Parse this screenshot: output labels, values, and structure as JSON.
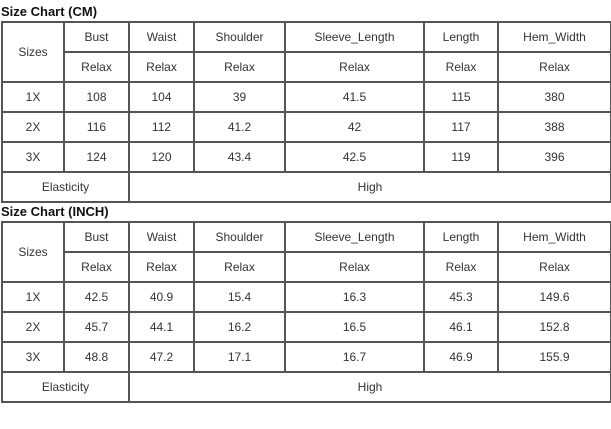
{
  "tables": [
    {
      "title": "Size Chart (CM)",
      "sizes_label": "Sizes",
      "headers": [
        "Bust",
        "Waist",
        "Shoulder",
        "Sleeve_Length",
        "Length",
        "Hem_Width"
      ],
      "subheaders": [
        "Relax",
        "Relax",
        "Relax",
        "Relax",
        "Relax",
        "Relax"
      ],
      "rows": [
        {
          "size": "1X",
          "values": [
            "108",
            "104",
            "39",
            "41.5",
            "115",
            "380"
          ]
        },
        {
          "size": "2X",
          "values": [
            "116",
            "112",
            "41.2",
            "42",
            "117",
            "388"
          ]
        },
        {
          "size": "3X",
          "values": [
            "124",
            "120",
            "43.4",
            "42.5",
            "119",
            "396"
          ]
        }
      ],
      "elasticity_label": "Elasticity",
      "elasticity_value": "High"
    },
    {
      "title": "Size Chart (INCH)",
      "sizes_label": "Sizes",
      "headers": [
        "Bust",
        "Waist",
        "Shoulder",
        "Sleeve_Length",
        "Length",
        "Hem_Width"
      ],
      "subheaders": [
        "Relax",
        "Relax",
        "Relax",
        "Relax",
        "Relax",
        "Relax"
      ],
      "rows": [
        {
          "size": "1X",
          "values": [
            "42.5",
            "40.9",
            "15.4",
            "16.3",
            "45.3",
            "149.6"
          ]
        },
        {
          "size": "2X",
          "values": [
            "45.7",
            "44.1",
            "16.2",
            "16.5",
            "46.1",
            "152.8"
          ]
        },
        {
          "size": "3X",
          "values": [
            "48.8",
            "47.2",
            "17.1",
            "16.7",
            "46.9",
            "155.9"
          ]
        }
      ],
      "elasticity_label": "Elasticity",
      "elasticity_value": "High"
    }
  ]
}
